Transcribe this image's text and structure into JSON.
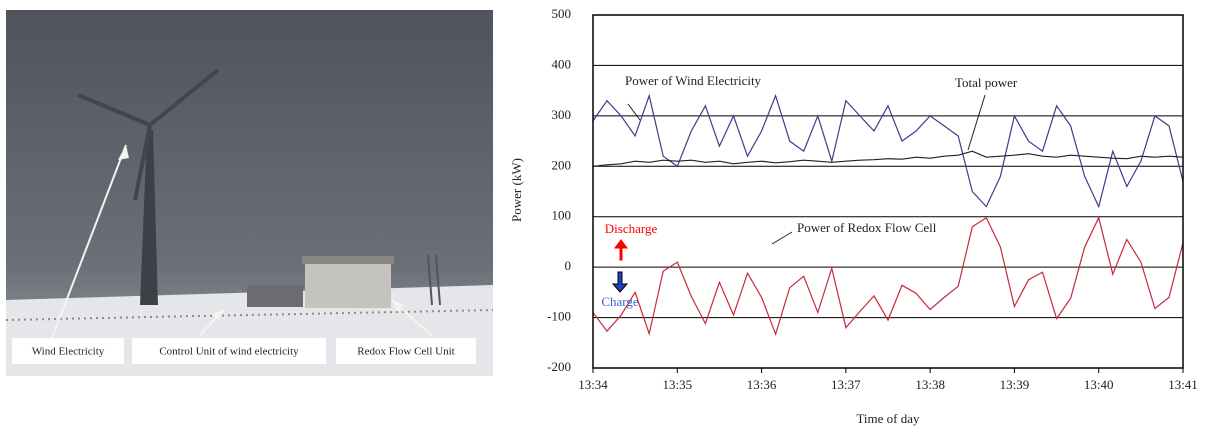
{
  "photo": {
    "labels": [
      "Wind Electricity",
      "Control Unit of wind electricity",
      "Redox Flow Cell Unit"
    ]
  },
  "chart_data": {
    "type": "line",
    "y_label": "Power (kW)",
    "x_label": "Time of day",
    "annotations": [
      {
        "text": "Power of Wind Electricity"
      },
      {
        "text": "Total power"
      },
      {
        "text": "Power of Redox Flow Cell"
      },
      {
        "text": "Discharge",
        "color": "#ff0000"
      },
      {
        "text": "Charge",
        "color": "#3a5fd0"
      }
    ],
    "x": [
      "13:34:00",
      "13:34:10",
      "13:34:20",
      "13:34:30",
      "13:34:40",
      "13:34:50",
      "13:35:00",
      "13:35:10",
      "13:35:20",
      "13:35:30",
      "13:35:40",
      "13:35:50",
      "13:36:00",
      "13:36:10",
      "13:36:20",
      "13:36:30",
      "13:36:40",
      "13:36:50",
      "13:37:00",
      "13:37:10",
      "13:37:20",
      "13:37:30",
      "13:37:40",
      "13:37:50",
      "13:38:00",
      "13:38:10",
      "13:38:20",
      "13:38:30",
      "13:38:40",
      "13:38:50",
      "13:39:00",
      "13:39:10",
      "13:39:20",
      "13:39:30",
      "13:39:40",
      "13:39:50",
      "13:40:00",
      "13:40:10",
      "13:40:20",
      "13:40:30",
      "13:40:40",
      "13:40:50",
      "13:41:00"
    ],
    "series": [
      {
        "name": "Power of Wind Electricity",
        "color": "#3c3c8c",
        "values": [
          290,
          330,
          300,
          260,
          340,
          220,
          200,
          270,
          320,
          240,
          300,
          220,
          270,
          340,
          250,
          230,
          300,
          210,
          330,
          300,
          270,
          320,
          250,
          270,
          300,
          280,
          260,
          150,
          120,
          180,
          300,
          250,
          230,
          320,
          280,
          180,
          120,
          230,
          160,
          210,
          300,
          280,
          170
        ]
      },
      {
        "name": "Total power",
        "color": "#222222",
        "values": [
          200,
          203,
          205,
          210,
          208,
          212,
          210,
          212,
          208,
          210,
          205,
          208,
          210,
          207,
          209,
          212,
          210,
          208,
          210,
          212,
          213,
          215,
          214,
          218,
          216,
          220,
          222,
          230,
          218,
          220,
          222,
          225,
          220,
          218,
          222,
          220,
          218,
          216,
          215,
          220,
          218,
          220,
          218
        ]
      },
      {
        "name": "Power of Redox Flow Cell",
        "color": "#c8283c",
        "values": [
          -90,
          -127,
          -95,
          -50,
          -132,
          -8,
          10,
          -58,
          -112,
          -30,
          -95,
          -12,
          -60,
          -133,
          -41,
          -18,
          -90,
          -2,
          -120,
          -88,
          -57,
          -105,
          -36,
          -52,
          -84,
          -60,
          -38,
          80,
          98,
          40,
          -78,
          -25,
          -10,
          -102,
          -62,
          40,
          98,
          -14,
          55,
          10,
          -82,
          -60,
          48
        ]
      }
    ],
    "xlim": [
      "13:34",
      "13:41"
    ],
    "xticks": [
      "13:34",
      "13:35",
      "13:36",
      "13:37",
      "13:38",
      "13:39",
      "13:40",
      "13:41"
    ],
    "ylim": [
      -200,
      500
    ],
    "yticks": [
      -200,
      -100,
      0,
      100,
      200,
      300,
      400,
      500
    ],
    "grid": true
  }
}
